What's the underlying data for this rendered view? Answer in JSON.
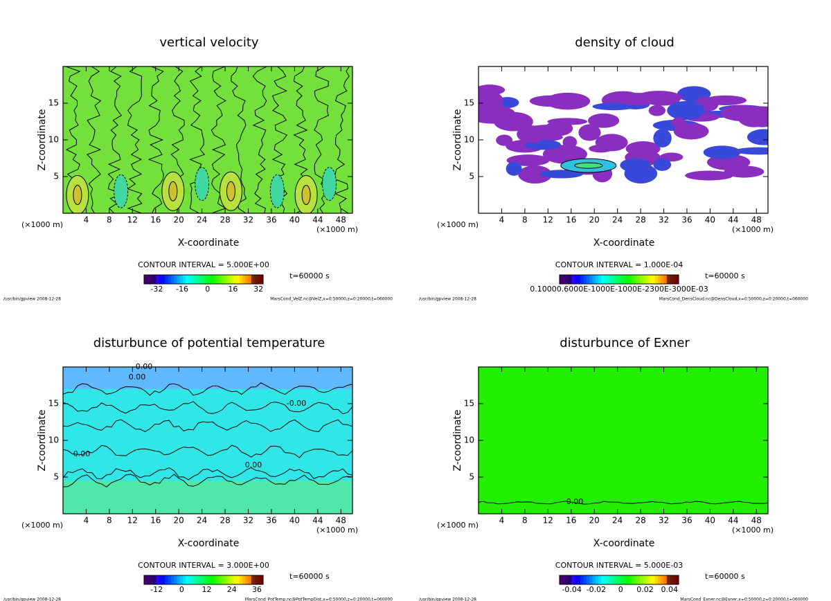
{
  "chart_data": [
    {
      "type": "contour",
      "title": "vertical velocity",
      "xlabel": "X-coordinate",
      "ylabel": "Z-coordinate",
      "xunit_left": "(×1000 m)",
      "xunit_right": "(×1000 m)",
      "xlim": [
        0,
        50
      ],
      "xticks": [
        4,
        8,
        12,
        16,
        20,
        24,
        28,
        32,
        36,
        40,
        44,
        48
      ],
      "ylim": [
        0,
        20
      ],
      "yticks": [
        5,
        10,
        15
      ],
      "field_color": "#74e03c",
      "contour_interval": "CONTOUR INTERVAL = 5.000E+00",
      "time": "t=60000 s",
      "colorbar": {
        "lim": [
          -40,
          35
        ],
        "ticks": [
          -32,
          -16,
          0,
          16,
          32
        ]
      },
      "footer_left": "/usr/bin/gpview  2008-12-28",
      "footer_right": "MarsCond_VelZ.nc@VelZ,x=0:50000,z=0:20000,t=060000",
      "annotations": []
    },
    {
      "type": "contour",
      "title": "density of cloud",
      "xlabel": "X-coordinate",
      "ylabel": "Z-coordinate",
      "xunit_left": "(×1000 m)",
      "xunit_right": "(×1000 m)",
      "xlim": [
        0,
        50
      ],
      "xticks": [
        4,
        8,
        12,
        16,
        20,
        24,
        28,
        32,
        36,
        40,
        44,
        48
      ],
      "ylim": [
        0,
        20
      ],
      "yticks": [
        5,
        10,
        15
      ],
      "field_color": "#ffffff",
      "contour_interval": "CONTOUR INTERVAL = 1.000E-04",
      "time": "t=60000 s",
      "colorbar": {
        "lim": [
          0,
          1
        ],
        "tick_text": "0.10000.6000E-1000E-1000E-2300E-3000E-03"
      },
      "footer_left": "/usr/bin/gpview  2008-12-28",
      "footer_right": "MarsCond_DensCloud.nc@DensCloud,x=0:50000,z=0:20000,t=060000",
      "annotations": []
    },
    {
      "type": "contour",
      "title": "disturbunce of potential temperature",
      "xlabel": "X-coordinate",
      "ylabel": "Z-coordinate",
      "xunit_left": "(×1000 m)",
      "xunit_right": "(×1000 m)",
      "xlim": [
        0,
        50
      ],
      "xticks": [
        4,
        8,
        12,
        16,
        20,
        24,
        28,
        32,
        36,
        40,
        44,
        48
      ],
      "ylim": [
        0,
        20
      ],
      "yticks": [
        5,
        10,
        15
      ],
      "field_color": "#30e6e6",
      "contour_interval": "CONTOUR INTERVAL = 3.000E+00",
      "time": "t=60000 s",
      "colorbar": {
        "lim": [
          -18,
          39
        ],
        "ticks": [
          -12,
          0,
          12,
          24,
          36
        ]
      },
      "footer_left": "/usr/bin/gpview  2008-12-28",
      "footer_right": "MarsCond_PotTemp.nc@PotTempDist,x=0:50000,z=0:20000,t=060000",
      "annotations": [
        "0.00",
        "0.00",
        "-0.00",
        "0.00",
        "0.00"
      ]
    },
    {
      "type": "contour",
      "title": "disturbunce of Exner",
      "xlabel": "X-coordinate",
      "ylabel": "Z-coordinate",
      "xunit_left": "(×1000 m)",
      "xunit_right": "(×1000 m)",
      "xlim": [
        0,
        50
      ],
      "xticks": [
        4,
        8,
        12,
        16,
        20,
        24,
        28,
        32,
        36,
        40,
        44,
        48
      ],
      "ylim": [
        0,
        20
      ],
      "yticks": [
        5,
        10,
        15
      ],
      "field_color": "#22ee00",
      "contour_interval": "CONTOUR INTERVAL = 5.000E-03",
      "time": "t=60000 s",
      "colorbar": {
        "lim": [
          -0.05,
          0.0475
        ],
        "ticks": [
          -0.04,
          -0.02,
          0,
          0.02,
          0.04
        ]
      },
      "footer_left": "/usr/bin/gpview  2008-12-28",
      "footer_right": "MarsCond_Exner.nc@Exner,x=0:50000,z=0:20000,t=060000",
      "annotations": [
        "0.00"
      ]
    }
  ]
}
